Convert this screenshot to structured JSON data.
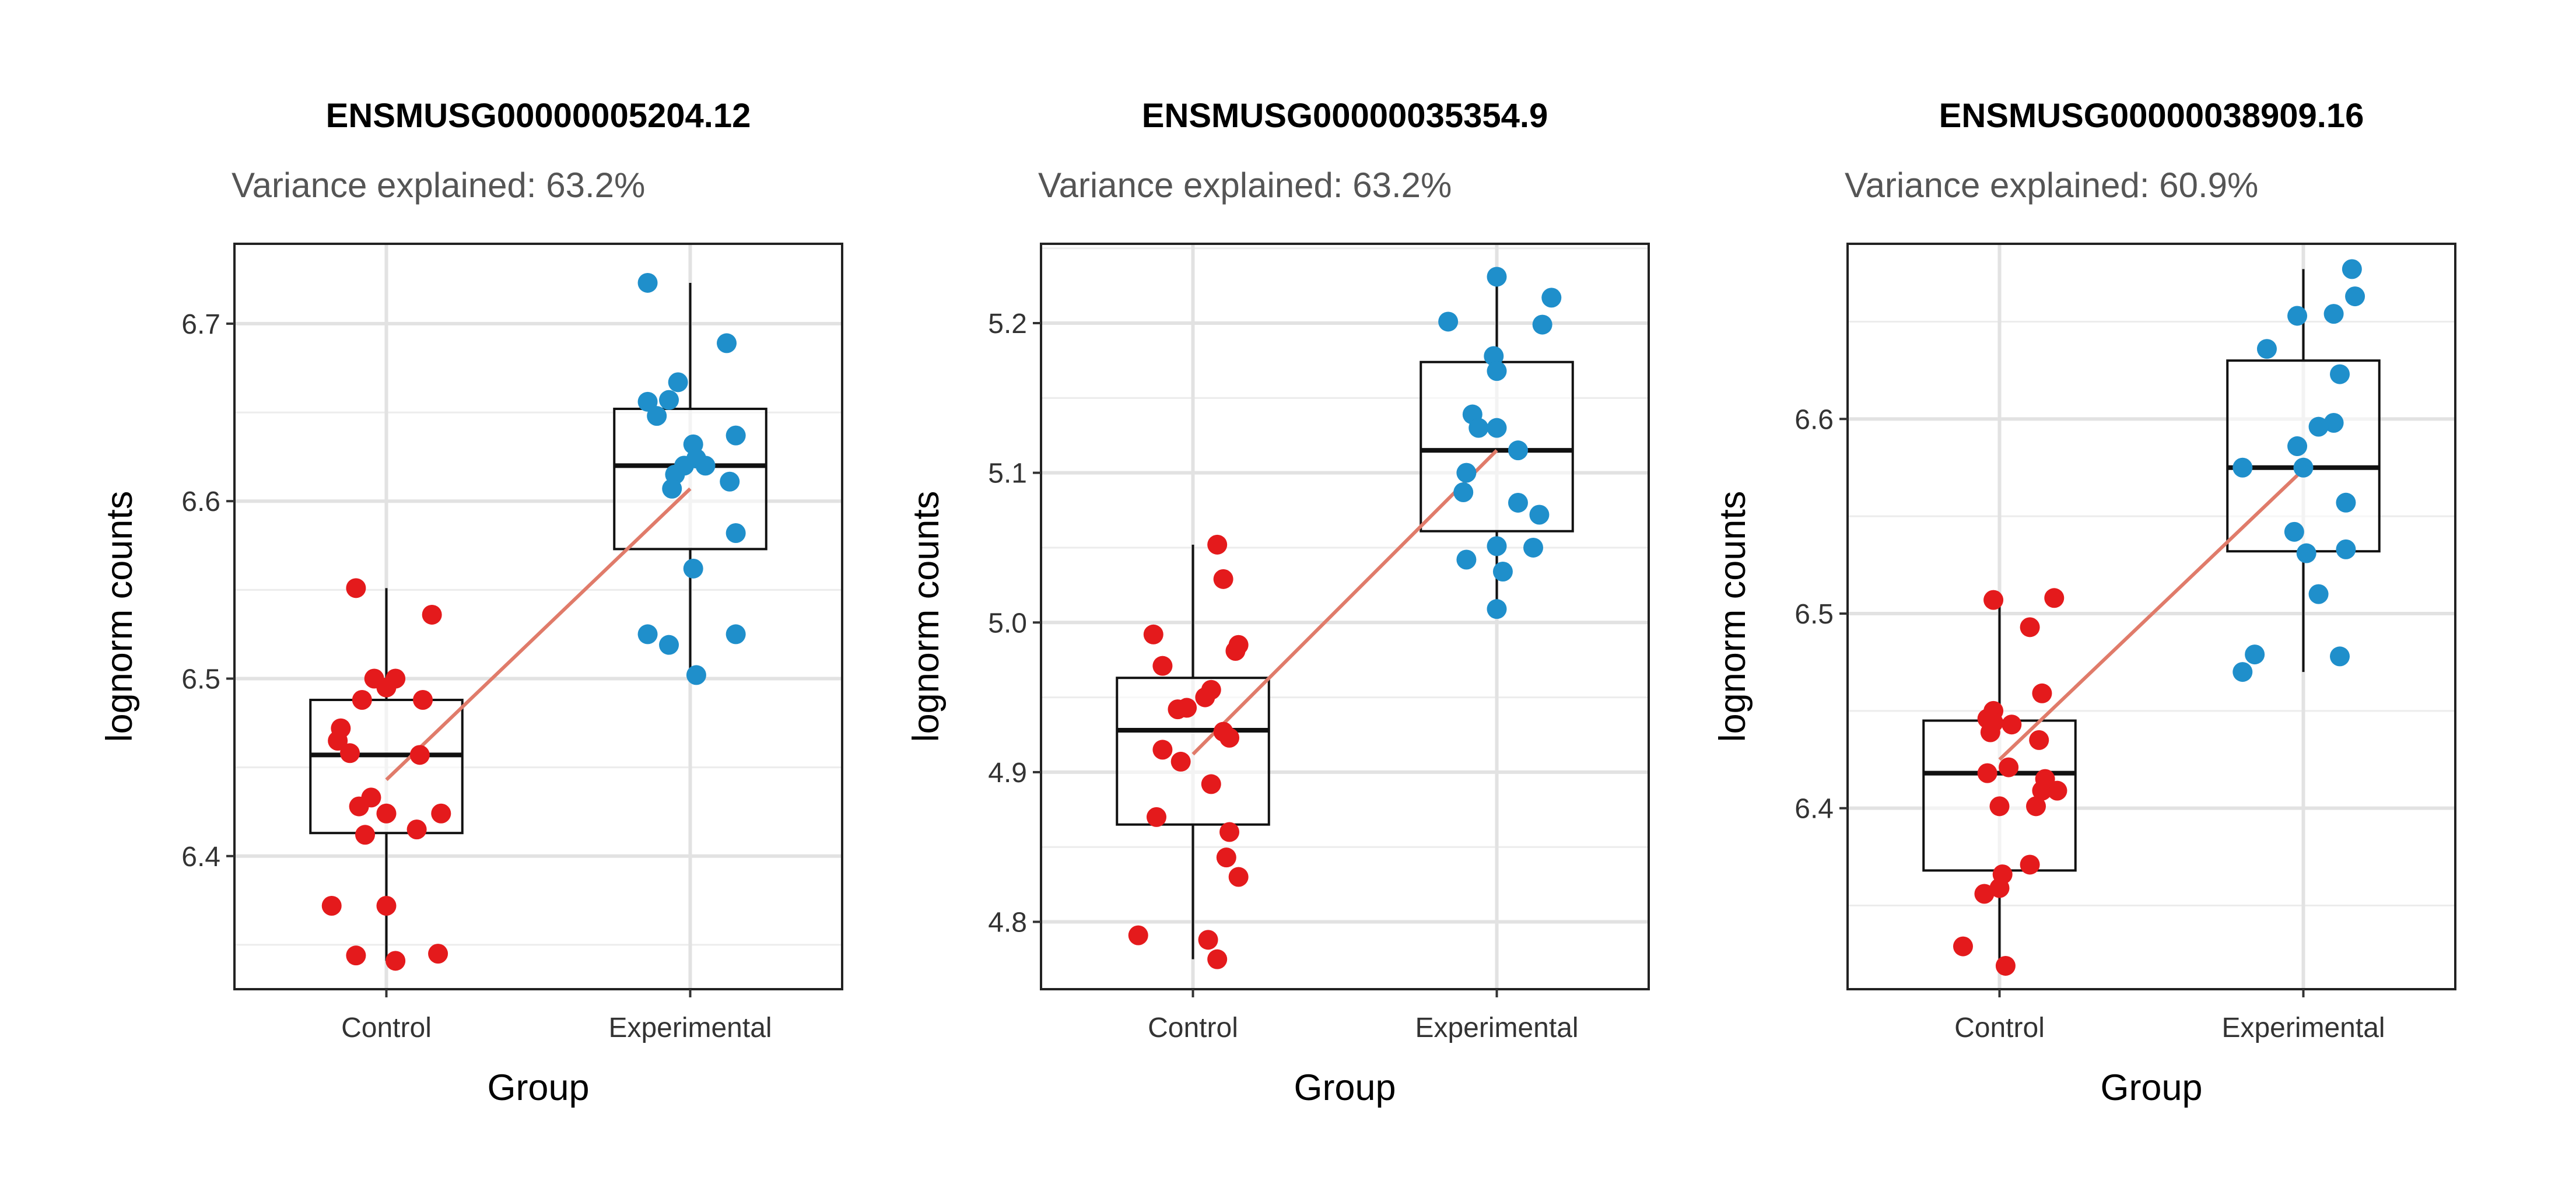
{
  "chart_data": [
    {
      "type": "box",
      "title": "ENSMUSG00000005204.12",
      "subtitle": "Variance explained: 63.2%",
      "xlabel": "Group",
      "ylabel": "lognorm counts",
      "categories": [
        "Control",
        "Experimental"
      ],
      "ylim": [
        6.325,
        6.745
      ],
      "yticks": [
        6.4,
        6.5,
        6.6,
        6.7
      ],
      "ytick_labels": [
        "6.4",
        "6.5",
        "6.6",
        "6.7"
      ],
      "grid": true,
      "colors": {
        "Control": "#E41A1C",
        "Experimental": "#1F8FCB",
        "trend": "#E07B6A"
      },
      "boxes": [
        {
          "group": "Control",
          "whisker_low": 6.341,
          "q1": 6.413,
          "median": 6.457,
          "q3": 6.488,
          "whisker_high": 6.551
        },
        {
          "group": "Experimental",
          "whisker_low": 6.502,
          "q1": 6.573,
          "median": 6.62,
          "q3": 6.652,
          "whisker_high": 6.723
        }
      ],
      "trend": {
        "from": [
          "Control",
          6.443
        ],
        "to": [
          "Experimental",
          6.607
        ]
      },
      "points": [
        {
          "group": "Control",
          "jitter": -0.1,
          "y": 6.551
        },
        {
          "group": "Control",
          "jitter": 0.15,
          "y": 6.536
        },
        {
          "group": "Control",
          "jitter": -0.04,
          "y": 6.5
        },
        {
          "group": "Control",
          "jitter": 0.03,
          "y": 6.5
        },
        {
          "group": "Control",
          "jitter": 0.0,
          "y": 6.495
        },
        {
          "group": "Control",
          "jitter": -0.08,
          "y": 6.488
        },
        {
          "group": "Control",
          "jitter": 0.12,
          "y": 6.488
        },
        {
          "group": "Control",
          "jitter": -0.15,
          "y": 6.472
        },
        {
          "group": "Control",
          "jitter": -0.16,
          "y": 6.465
        },
        {
          "group": "Control",
          "jitter": -0.12,
          "y": 6.458
        },
        {
          "group": "Control",
          "jitter": 0.11,
          "y": 6.457
        },
        {
          "group": "Control",
          "jitter": -0.05,
          "y": 6.433
        },
        {
          "group": "Control",
          "jitter": -0.09,
          "y": 6.428
        },
        {
          "group": "Control",
          "jitter": 0.0,
          "y": 6.424
        },
        {
          "group": "Control",
          "jitter": 0.18,
          "y": 6.424
        },
        {
          "group": "Control",
          "jitter": 0.1,
          "y": 6.415
        },
        {
          "group": "Control",
          "jitter": -0.07,
          "y": 6.412
        },
        {
          "group": "Control",
          "jitter": -0.18,
          "y": 6.372
        },
        {
          "group": "Control",
          "jitter": 0.0,
          "y": 6.372
        },
        {
          "group": "Control",
          "jitter": -0.1,
          "y": 6.344
        },
        {
          "group": "Control",
          "jitter": 0.17,
          "y": 6.345
        },
        {
          "group": "Control",
          "jitter": 0.03,
          "y": 6.341
        },
        {
          "group": "Experimental",
          "jitter": -0.14,
          "y": 6.723
        },
        {
          "group": "Experimental",
          "jitter": 0.12,
          "y": 6.689
        },
        {
          "group": "Experimental",
          "jitter": -0.04,
          "y": 6.667
        },
        {
          "group": "Experimental",
          "jitter": -0.07,
          "y": 6.657
        },
        {
          "group": "Experimental",
          "jitter": -0.14,
          "y": 6.656
        },
        {
          "group": "Experimental",
          "jitter": -0.11,
          "y": 6.648
        },
        {
          "group": "Experimental",
          "jitter": 0.15,
          "y": 6.637
        },
        {
          "group": "Experimental",
          "jitter": 0.01,
          "y": 6.632
        },
        {
          "group": "Experimental",
          "jitter": 0.02,
          "y": 6.624
        },
        {
          "group": "Experimental",
          "jitter": -0.02,
          "y": 6.62
        },
        {
          "group": "Experimental",
          "jitter": 0.05,
          "y": 6.62
        },
        {
          "group": "Experimental",
          "jitter": -0.05,
          "y": 6.615
        },
        {
          "group": "Experimental",
          "jitter": 0.13,
          "y": 6.611
        },
        {
          "group": "Experimental",
          "jitter": -0.06,
          "y": 6.607
        },
        {
          "group": "Experimental",
          "jitter": 0.15,
          "y": 6.582
        },
        {
          "group": "Experimental",
          "jitter": 0.01,
          "y": 6.562
        },
        {
          "group": "Experimental",
          "jitter": -0.14,
          "y": 6.525
        },
        {
          "group": "Experimental",
          "jitter": 0.15,
          "y": 6.525
        },
        {
          "group": "Experimental",
          "jitter": -0.07,
          "y": 6.519
        },
        {
          "group": "Experimental",
          "jitter": 0.02,
          "y": 6.502
        }
      ]
    },
    {
      "type": "box",
      "title": "ENSMUSG00000035354.9",
      "subtitle": "Variance explained: 63.2%",
      "xlabel": "Group",
      "ylabel": "lognorm counts",
      "categories": [
        "Control",
        "Experimental"
      ],
      "ylim": [
        4.755,
        5.253
      ],
      "yticks": [
        4.8,
        4.9,
        5.0,
        5.1,
        5.2
      ],
      "ytick_labels": [
        "4.8",
        "4.9",
        "5.0",
        "5.1",
        "5.2"
      ],
      "grid": true,
      "colors": {
        "Control": "#E41A1C",
        "Experimental": "#1F8FCB",
        "trend": "#E07B6A"
      },
      "boxes": [
        {
          "group": "Control",
          "whisker_low": 4.775,
          "q1": 4.865,
          "median": 4.928,
          "q3": 4.963,
          "whisker_high": 5.052
        },
        {
          "group": "Experimental",
          "whisker_low": 5.009,
          "q1": 5.061,
          "median": 5.115,
          "q3": 5.174,
          "whisker_high": 5.231
        }
      ],
      "trend": {
        "from": [
          "Control",
          4.912
        ],
        "to": [
          "Experimental",
          5.115
        ]
      },
      "points": [
        {
          "group": "Control",
          "jitter": 0.08,
          "y": 5.052
        },
        {
          "group": "Control",
          "jitter": 0.1,
          "y": 5.029
        },
        {
          "group": "Control",
          "jitter": -0.13,
          "y": 4.992
        },
        {
          "group": "Control",
          "jitter": 0.15,
          "y": 4.985
        },
        {
          "group": "Control",
          "jitter": 0.14,
          "y": 4.981
        },
        {
          "group": "Control",
          "jitter": -0.1,
          "y": 4.971
        },
        {
          "group": "Control",
          "jitter": 0.06,
          "y": 4.955
        },
        {
          "group": "Control",
          "jitter": 0.04,
          "y": 4.95
        },
        {
          "group": "Control",
          "jitter": -0.02,
          "y": 4.943
        },
        {
          "group": "Control",
          "jitter": -0.05,
          "y": 4.942
        },
        {
          "group": "Control",
          "jitter": 0.1,
          "y": 4.927
        },
        {
          "group": "Control",
          "jitter": 0.12,
          "y": 4.923
        },
        {
          "group": "Control",
          "jitter": -0.1,
          "y": 4.915
        },
        {
          "group": "Control",
          "jitter": -0.04,
          "y": 4.907
        },
        {
          "group": "Control",
          "jitter": 0.06,
          "y": 4.892
        },
        {
          "group": "Control",
          "jitter": -0.12,
          "y": 4.87
        },
        {
          "group": "Control",
          "jitter": 0.12,
          "y": 4.86
        },
        {
          "group": "Control",
          "jitter": 0.11,
          "y": 4.843
        },
        {
          "group": "Control",
          "jitter": 0.15,
          "y": 4.83
        },
        {
          "group": "Control",
          "jitter": -0.18,
          "y": 4.791
        },
        {
          "group": "Control",
          "jitter": 0.05,
          "y": 4.788
        },
        {
          "group": "Control",
          "jitter": 0.08,
          "y": 4.775
        },
        {
          "group": "Experimental",
          "jitter": 0.0,
          "y": 5.231
        },
        {
          "group": "Experimental",
          "jitter": 0.18,
          "y": 5.217
        },
        {
          "group": "Experimental",
          "jitter": -0.16,
          "y": 5.201
        },
        {
          "group": "Experimental",
          "jitter": 0.15,
          "y": 5.199
        },
        {
          "group": "Experimental",
          "jitter": -0.01,
          "y": 5.178
        },
        {
          "group": "Experimental",
          "jitter": 0.0,
          "y": 5.168
        },
        {
          "group": "Experimental",
          "jitter": -0.08,
          "y": 5.139
        },
        {
          "group": "Experimental",
          "jitter": -0.06,
          "y": 5.13
        },
        {
          "group": "Experimental",
          "jitter": 0.0,
          "y": 5.13
        },
        {
          "group": "Experimental",
          "jitter": 0.07,
          "y": 5.115
        },
        {
          "group": "Experimental",
          "jitter": -0.1,
          "y": 5.1
        },
        {
          "group": "Experimental",
          "jitter": -0.11,
          "y": 5.087
        },
        {
          "group": "Experimental",
          "jitter": 0.07,
          "y": 5.08
        },
        {
          "group": "Experimental",
          "jitter": 0.14,
          "y": 5.072
        },
        {
          "group": "Experimental",
          "jitter": 0.0,
          "y": 5.051
        },
        {
          "group": "Experimental",
          "jitter": 0.12,
          "y": 5.05
        },
        {
          "group": "Experimental",
          "jitter": -0.1,
          "y": 5.042
        },
        {
          "group": "Experimental",
          "jitter": 0.02,
          "y": 5.034
        },
        {
          "group": "Experimental",
          "jitter": 0.0,
          "y": 5.009
        }
      ]
    },
    {
      "type": "box",
      "title": "ENSMUSG00000038909.16",
      "subtitle": "Variance explained: 60.9%",
      "xlabel": "Group",
      "ylabel": "lognorm counts",
      "categories": [
        "Control",
        "Experimental"
      ],
      "ylim": [
        6.307,
        6.69
      ],
      "yticks": [
        6.4,
        6.5,
        6.6
      ],
      "ytick_labels": [
        "6.4",
        "6.5",
        "6.6"
      ],
      "grid": true,
      "colors": {
        "Control": "#E41A1C",
        "Experimental": "#1F8FCB",
        "trend": "#E07B6A"
      },
      "boxes": [
        {
          "group": "Control",
          "whisker_low": 6.319,
          "q1": 6.368,
          "median": 6.418,
          "q3": 6.445,
          "whisker_high": 6.507
        },
        {
          "group": "Experimental",
          "whisker_low": 6.47,
          "q1": 6.532,
          "median": 6.575,
          "q3": 6.63,
          "whisker_high": 6.677
        }
      ],
      "trend": {
        "from": [
          "Control",
          6.425
        ],
        "to": [
          "Experimental",
          6.574
        ]
      },
      "points": [
        {
          "group": "Control",
          "jitter": -0.02,
          "y": 6.507
        },
        {
          "group": "Control",
          "jitter": 0.18,
          "y": 6.508
        },
        {
          "group": "Control",
          "jitter": 0.1,
          "y": 6.493
        },
        {
          "group": "Control",
          "jitter": 0.14,
          "y": 6.459
        },
        {
          "group": "Control",
          "jitter": -0.02,
          "y": 6.45
        },
        {
          "group": "Control",
          "jitter": -0.04,
          "y": 6.446
        },
        {
          "group": "Control",
          "jitter": -0.02,
          "y": 6.444
        },
        {
          "group": "Control",
          "jitter": 0.04,
          "y": 6.443
        },
        {
          "group": "Control",
          "jitter": -0.03,
          "y": 6.439
        },
        {
          "group": "Control",
          "jitter": 0.13,
          "y": 6.435
        },
        {
          "group": "Control",
          "jitter": 0.03,
          "y": 6.421
        },
        {
          "group": "Control",
          "jitter": -0.04,
          "y": 6.418
        },
        {
          "group": "Control",
          "jitter": 0.14,
          "y": 6.409
        },
        {
          "group": "Control",
          "jitter": 0.19,
          "y": 6.409
        },
        {
          "group": "Control",
          "jitter": 0.15,
          "y": 6.415
        },
        {
          "group": "Control",
          "jitter": 0.12,
          "y": 6.401
        },
        {
          "group": "Control",
          "jitter": 0.0,
          "y": 6.401
        },
        {
          "group": "Control",
          "jitter": 0.1,
          "y": 6.371
        },
        {
          "group": "Control",
          "jitter": 0.01,
          "y": 6.366
        },
        {
          "group": "Control",
          "jitter": 0.0,
          "y": 6.359
        },
        {
          "group": "Control",
          "jitter": -0.05,
          "y": 6.356
        },
        {
          "group": "Control",
          "jitter": -0.12,
          "y": 6.329
        },
        {
          "group": "Control",
          "jitter": 0.02,
          "y": 6.319
        },
        {
          "group": "Experimental",
          "jitter": 0.16,
          "y": 6.677
        },
        {
          "group": "Experimental",
          "jitter": 0.17,
          "y": 6.663
        },
        {
          "group": "Experimental",
          "jitter": 0.1,
          "y": 6.654
        },
        {
          "group": "Experimental",
          "jitter": -0.02,
          "y": 6.653
        },
        {
          "group": "Experimental",
          "jitter": -0.12,
          "y": 6.636
        },
        {
          "group": "Experimental",
          "jitter": 0.12,
          "y": 6.623
        },
        {
          "group": "Experimental",
          "jitter": 0.1,
          "y": 6.598
        },
        {
          "group": "Experimental",
          "jitter": 0.05,
          "y": 6.596
        },
        {
          "group": "Experimental",
          "jitter": -0.02,
          "y": 6.586
        },
        {
          "group": "Experimental",
          "jitter": -0.2,
          "y": 6.575
        },
        {
          "group": "Experimental",
          "jitter": 0.0,
          "y": 6.575
        },
        {
          "group": "Experimental",
          "jitter": 0.14,
          "y": 6.557
        },
        {
          "group": "Experimental",
          "jitter": -0.03,
          "y": 6.542
        },
        {
          "group": "Experimental",
          "jitter": 0.14,
          "y": 6.533
        },
        {
          "group": "Experimental",
          "jitter": 0.01,
          "y": 6.531
        },
        {
          "group": "Experimental",
          "jitter": 0.05,
          "y": 6.51
        },
        {
          "group": "Experimental",
          "jitter": -0.16,
          "y": 6.479
        },
        {
          "group": "Experimental",
          "jitter": 0.12,
          "y": 6.478
        },
        {
          "group": "Experimental",
          "jitter": -0.2,
          "y": 6.47
        }
      ]
    }
  ]
}
